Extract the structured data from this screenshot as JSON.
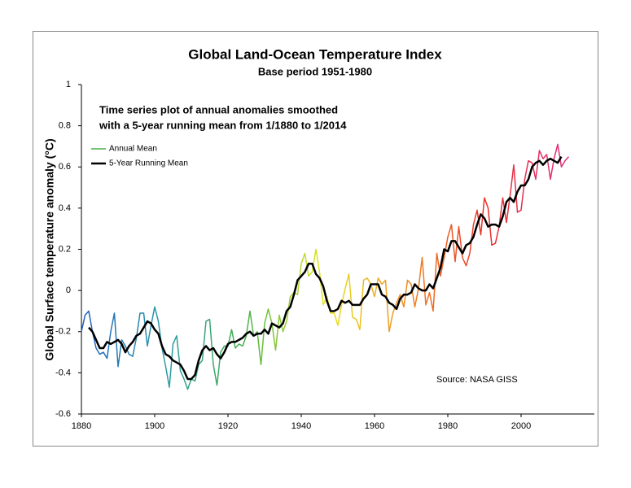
{
  "chart_data": {
    "type": "line",
    "title": "Global Land-Ocean Temperature Index",
    "subtitle": "Base period 1951-1980",
    "annotation": [
      "Time series plot of annual anomalies smoothed",
      "with a 5-year running mean from 1/1880 to 1/2014"
    ],
    "source": "Source: NASA GISS",
    "y_label": "Global Surface temperature anomaly (°C)",
    "xlim": [
      1880,
      2020
    ],
    "xticks": [
      1880,
      1900,
      1920,
      1940,
      1960,
      1980,
      2000
    ],
    "ylim": [
      -0.6,
      1
    ],
    "yticks": [
      -0.6,
      -0.4,
      -0.2,
      0,
      0.2,
      0.4,
      0.6,
      0.8,
      1
    ],
    "grid": false,
    "legend": "upper left",
    "color_gradient": [
      "#1f5fc0",
      "#2a9aa8",
      "#45b04a",
      "#e8e820",
      "#f08a20",
      "#e8302a",
      "#e03080"
    ],
    "x": [
      1880,
      1881,
      1882,
      1883,
      1884,
      1885,
      1886,
      1887,
      1888,
      1889,
      1890,
      1891,
      1892,
      1893,
      1894,
      1895,
      1896,
      1897,
      1898,
      1899,
      1900,
      1901,
      1902,
      1903,
      1904,
      1905,
      1906,
      1907,
      1908,
      1909,
      1910,
      1911,
      1912,
      1913,
      1914,
      1915,
      1916,
      1917,
      1918,
      1919,
      1920,
      1921,
      1922,
      1923,
      1924,
      1925,
      1926,
      1927,
      1928,
      1929,
      1930,
      1931,
      1932,
      1933,
      1934,
      1935,
      1936,
      1937,
      1938,
      1939,
      1940,
      1941,
      1942,
      1943,
      1944,
      1945,
      1946,
      1947,
      1948,
      1949,
      1950,
      1951,
      1952,
      1953,
      1954,
      1955,
      1956,
      1957,
      1958,
      1959,
      1960,
      1961,
      1962,
      1963,
      1964,
      1965,
      1966,
      1967,
      1968,
      1969,
      1970,
      1971,
      1972,
      1973,
      1974,
      1975,
      1976,
      1977,
      1978,
      1979,
      1980,
      1981,
      1982,
      1983,
      1984,
      1985,
      1986,
      1987,
      1988,
      1989,
      1990,
      1991,
      1992,
      1993,
      1994,
      1995,
      1996,
      1997,
      1998,
      1999,
      2000,
      2001,
      2002,
      2003,
      2004,
      2005,
      2006,
      2007,
      2008,
      2009,
      2010,
      2011,
      2012,
      2013
    ],
    "series": [
      {
        "name": "Annual Mean",
        "color": "#45b04a",
        "width": 1.5,
        "values": [
          -0.2,
          -0.12,
          -0.1,
          -0.2,
          -0.28,
          -0.31,
          -0.3,
          -0.33,
          -0.2,
          -0.11,
          -0.37,
          -0.24,
          -0.27,
          -0.31,
          -0.32,
          -0.23,
          -0.11,
          -0.11,
          -0.27,
          -0.17,
          -0.08,
          -0.15,
          -0.28,
          -0.37,
          -0.47,
          -0.26,
          -0.22,
          -0.39,
          -0.43,
          -0.48,
          -0.43,
          -0.44,
          -0.36,
          -0.34,
          -0.15,
          -0.14,
          -0.36,
          -0.46,
          -0.3,
          -0.27,
          -0.27,
          -0.19,
          -0.28,
          -0.26,
          -0.27,
          -0.22,
          -0.1,
          -0.22,
          -0.2,
          -0.36,
          -0.16,
          -0.09,
          -0.16,
          -0.29,
          -0.12,
          -0.2,
          -0.15,
          -0.03,
          -0.01,
          -0.02,
          0.13,
          0.18,
          0.07,
          0.09,
          0.2,
          0.09,
          -0.07,
          -0.03,
          -0.11,
          -0.11,
          -0.17,
          -0.07,
          0.01,
          0.08,
          -0.13,
          -0.14,
          -0.19,
          0.05,
          0.06,
          0.03,
          -0.03,
          0.06,
          0.03,
          0.05,
          -0.2,
          -0.11,
          -0.06,
          -0.02,
          -0.08,
          0.05,
          0.03,
          -0.08,
          0.01,
          0.16,
          -0.07,
          -0.01,
          -0.1,
          0.18,
          0.07,
          0.16,
          0.26,
          0.32,
          0.14,
          0.31,
          0.16,
          0.12,
          0.18,
          0.32,
          0.39,
          0.27,
          0.45,
          0.4,
          0.22,
          0.23,
          0.31,
          0.45,
          0.33,
          0.46,
          0.61,
          0.38,
          0.39,
          0.54,
          0.63,
          0.62,
          0.54,
          0.68,
          0.64,
          0.66,
          0.54,
          0.64,
          0.71,
          0.6,
          0.63,
          0.65
        ]
      },
      {
        "name": "5-Year Running Mean",
        "color": "#000000",
        "width": 2.5,
        "values": [
          null,
          null,
          -0.18,
          -0.2,
          -0.24,
          -0.28,
          -0.28,
          -0.25,
          -0.26,
          -0.25,
          -0.24,
          -0.26,
          -0.3,
          -0.27,
          -0.25,
          -0.22,
          -0.21,
          -0.18,
          -0.15,
          -0.16,
          -0.19,
          -0.21,
          -0.27,
          -0.31,
          -0.32,
          -0.34,
          -0.35,
          -0.36,
          -0.39,
          -0.43,
          -0.43,
          -0.41,
          -0.34,
          -0.29,
          -0.27,
          -0.29,
          -0.28,
          -0.31,
          -0.33,
          -0.3,
          -0.26,
          -0.25,
          -0.25,
          -0.24,
          -0.23,
          -0.21,
          -0.2,
          -0.22,
          -0.21,
          -0.21,
          -0.19,
          -0.21,
          -0.16,
          -0.17,
          -0.18,
          -0.16,
          -0.1,
          -0.08,
          -0.02,
          0.05,
          0.07,
          0.09,
          0.13,
          0.13,
          0.08,
          0.06,
          0.02,
          -0.05,
          -0.1,
          -0.1,
          -0.09,
          -0.05,
          -0.06,
          -0.05,
          -0.07,
          -0.07,
          -0.07,
          -0.04,
          -0.02,
          0.03,
          0.03,
          0.03,
          -0.02,
          -0.03,
          -0.06,
          -0.07,
          -0.09,
          -0.04,
          -0.02,
          -0.02,
          -0.01,
          0.03,
          0.01,
          0.0,
          0.0,
          0.03,
          0.01,
          0.06,
          0.11,
          0.2,
          0.19,
          0.24,
          0.24,
          0.21,
          0.18,
          0.22,
          0.23,
          0.26,
          0.32,
          0.37,
          0.35,
          0.31,
          0.32,
          0.32,
          0.31,
          0.36,
          0.43,
          0.45,
          0.43,
          0.48,
          0.51,
          0.51,
          0.54,
          0.6,
          0.62,
          0.63,
          0.61,
          0.63,
          0.64,
          0.63,
          0.62,
          0.65,
          null,
          null
        ]
      }
    ]
  }
}
